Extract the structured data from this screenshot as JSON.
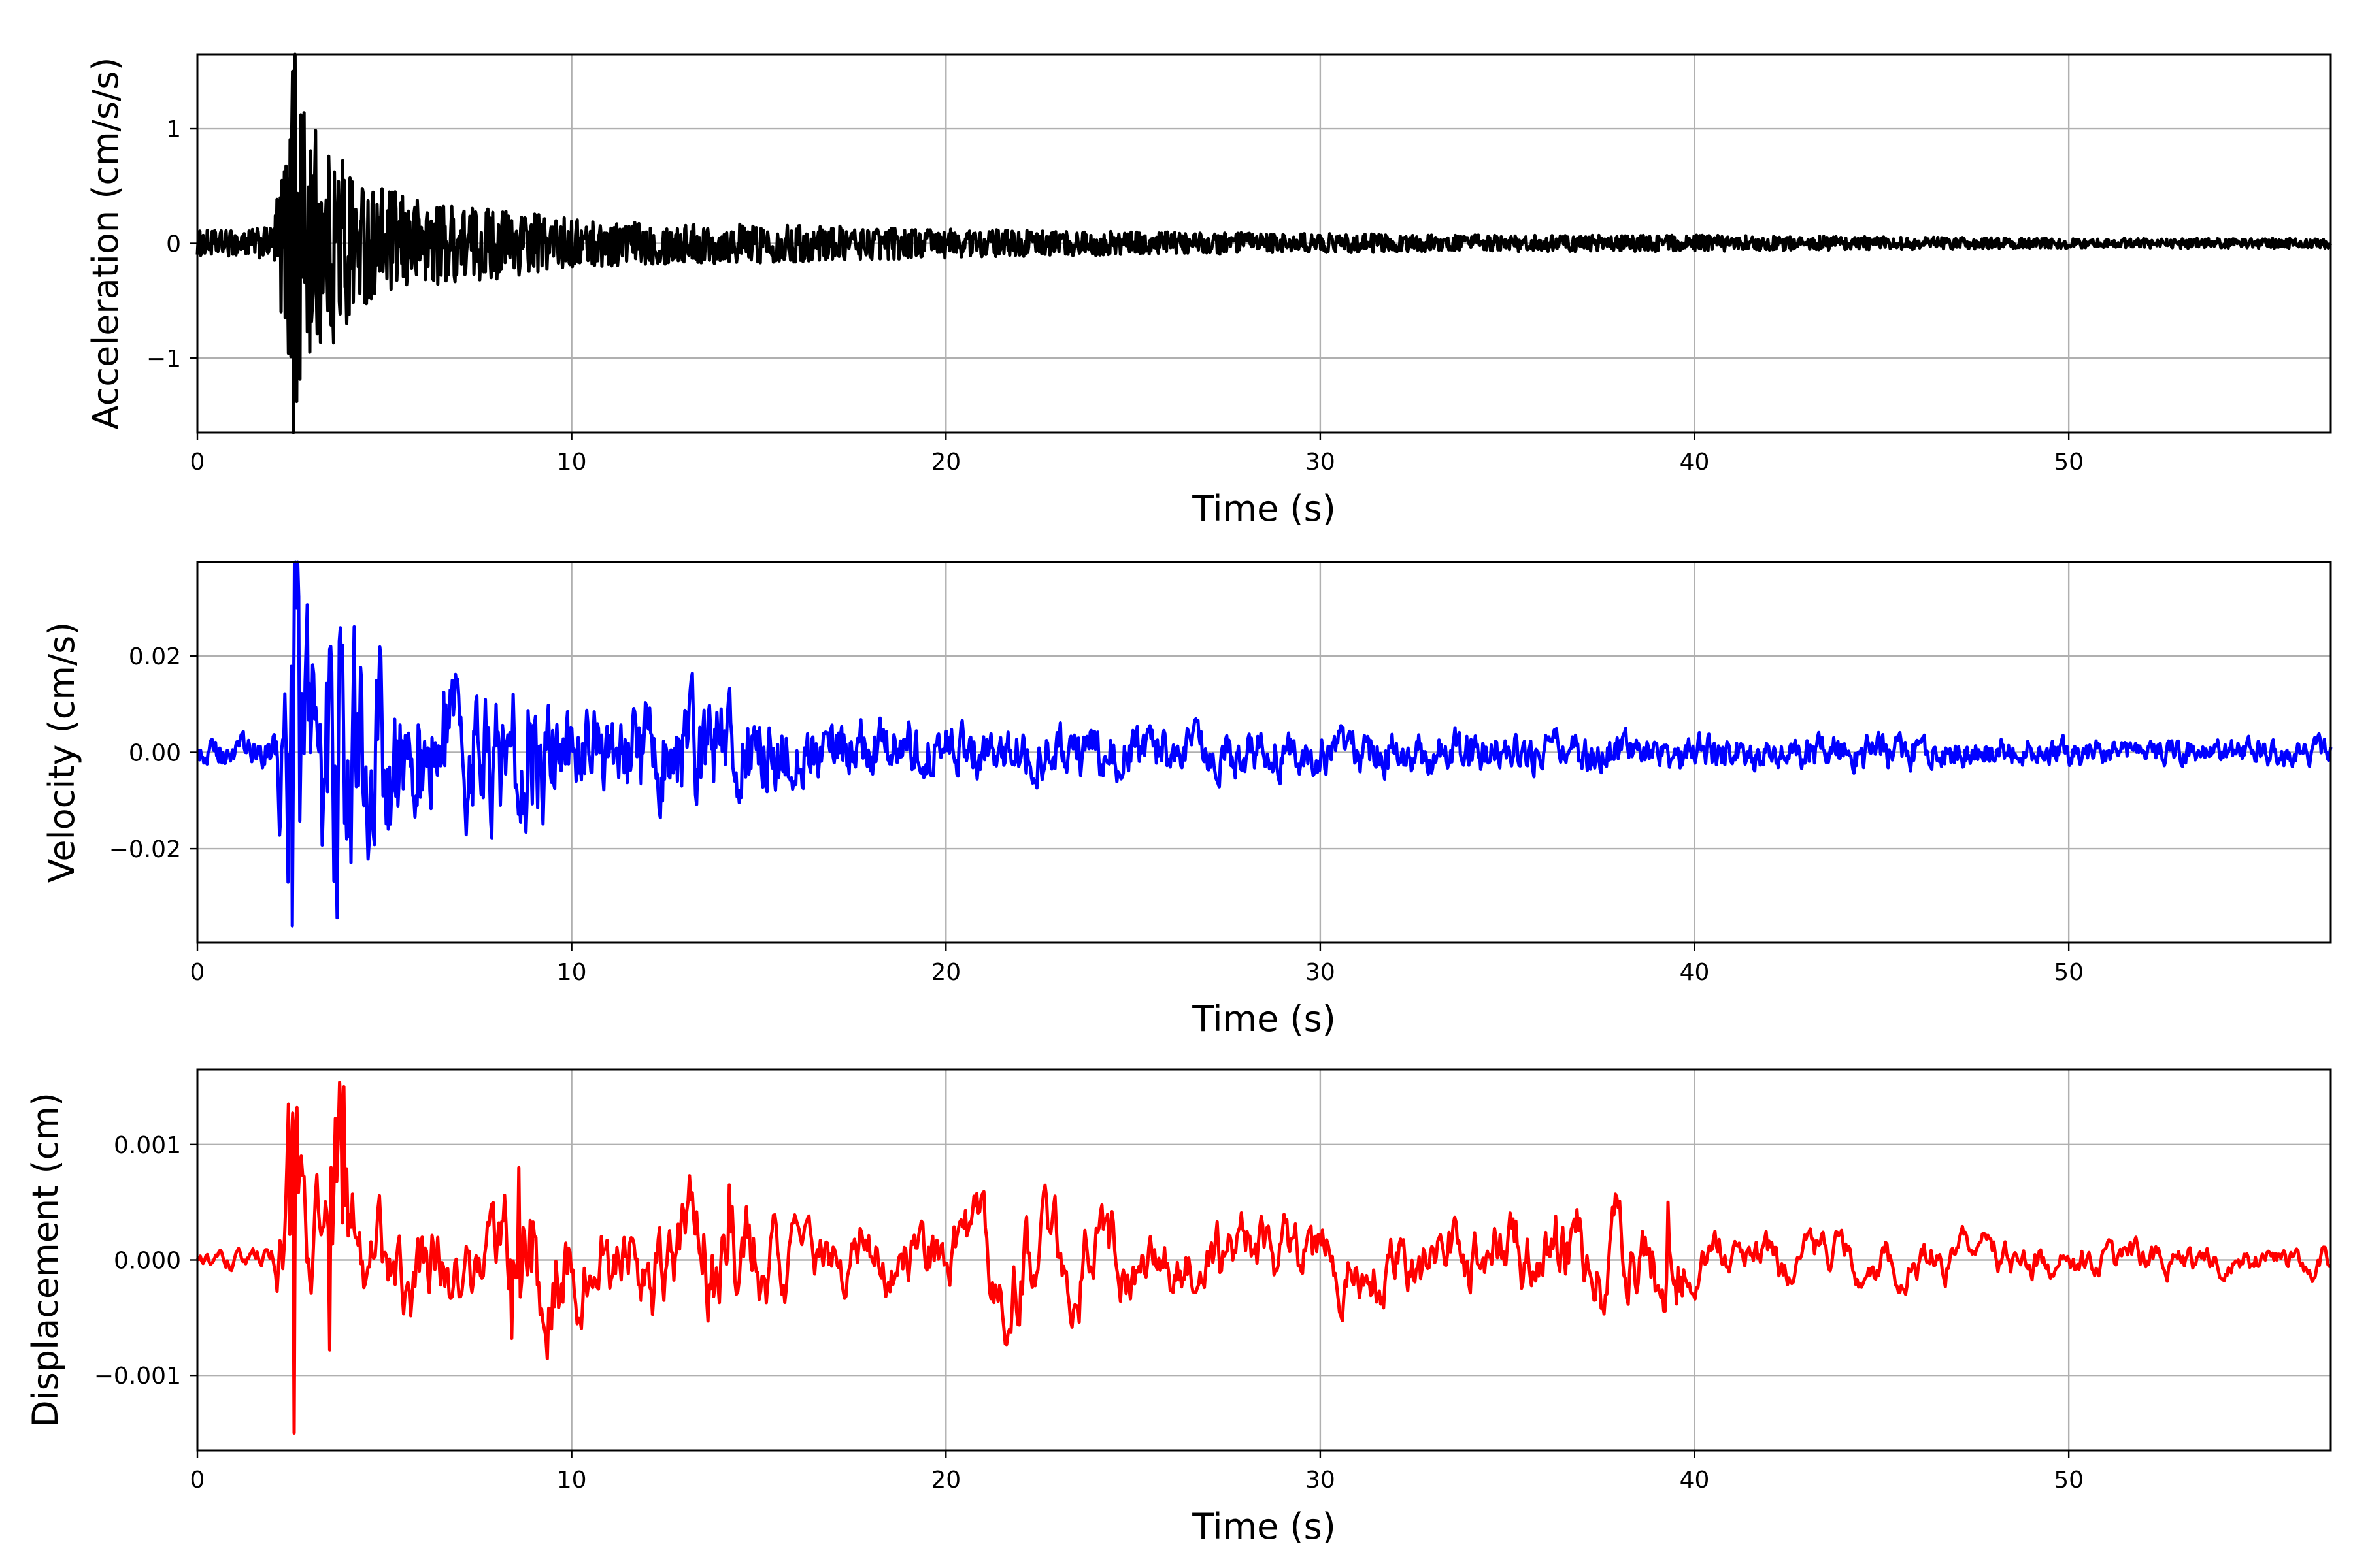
{
  "chart_data": [
    {
      "id": "acceleration",
      "type": "line",
      "xlabel": "Time (s)",
      "ylabel": "Acceleration (cm/s/s)",
      "xlim": [
        0,
        57
      ],
      "ylim": [
        -1.65,
        1.65
      ],
      "xticks": [
        0,
        10,
        20,
        30,
        40,
        50
      ],
      "yticks": [
        -1,
        0,
        1
      ],
      "xtick_labels": [
        "0",
        "10",
        "20",
        "30",
        "40",
        "50"
      ],
      "ytick_labels": [
        "−1",
        "0",
        "1"
      ],
      "grid": true,
      "color": "#000000",
      "series": [
        {
          "x": [
            0,
            1,
            2,
            2.2,
            2.4,
            2.55,
            2.65,
            2.75,
            2.9,
            3.1,
            3.4,
            3.8,
            4.2,
            4.8,
            5.5,
            6.5,
            8,
            10,
            12,
            15,
            18,
            22,
            26,
            30,
            35,
            40,
            45,
            50,
            57
          ],
          "envelope": [
            0.08,
            0.08,
            0.1,
            0.4,
            0.6,
            1.5,
            1.38,
            1.1,
            0.7,
            0.8,
            0.5,
            0.7,
            0.4,
            0.35,
            0.3,
            0.25,
            0.22,
            0.15,
            0.13,
            0.12,
            0.1,
            0.08,
            0.07,
            0.06,
            0.05,
            0.05,
            0.04,
            0.03,
            0.03
          ],
          "peaks": [
            [
              2.55,
              1.5
            ],
            [
              2.65,
              -1.38
            ],
            [
              2.4,
              0.55
            ],
            [
              3.0,
              -0.95
            ],
            [
              4.0,
              -0.7
            ]
          ]
        }
      ]
    },
    {
      "id": "velocity",
      "type": "line",
      "xlabel": "Time (s)",
      "ylabel": "Velocity (cm/s)",
      "xlim": [
        0,
        57
      ],
      "ylim": [
        -0.0395,
        0.0395
      ],
      "xticks": [
        0,
        10,
        20,
        30,
        40,
        50
      ],
      "yticks": [
        -0.02,
        0,
        0.02
      ],
      "xtick_labels": [
        "0",
        "10",
        "20",
        "30",
        "40",
        "50"
      ],
      "ytick_labels": [
        "−0.02",
        "0.00",
        "0.02"
      ],
      "grid": true,
      "color": "#0000ff",
      "series": [
        {
          "x": [
            0,
            1,
            2,
            2.2,
            2.4,
            2.55,
            2.65,
            2.8,
            3.1,
            3.5,
            3.8,
            4.3,
            5,
            6,
            7,
            8,
            8.6,
            10,
            12,
            14,
            16,
            20,
            25,
            30,
            35,
            40,
            45,
            50,
            57
          ],
          "envelope": [
            0.0015,
            0.0015,
            0.002,
            0.01,
            0.013,
            0.03,
            0.036,
            0.015,
            0.014,
            0.013,
            0.022,
            0.012,
            0.011,
            0.009,
            0.008,
            0.008,
            0.01,
            0.005,
            0.006,
            0.006,
            0.004,
            0.003,
            0.003,
            0.0025,
            0.0025,
            0.002,
            0.002,
            0.0015,
            0.0015
          ],
          "peaks": [
            [
              2.65,
              0.03
            ],
            [
              2.55,
              -0.036
            ],
            [
              3.8,
              0.023
            ],
            [
              4.0,
              -0.018
            ],
            [
              8.8,
              -0.01
            ],
            [
              14.0,
              0.009
            ]
          ]
        }
      ]
    },
    {
      "id": "displacement",
      "type": "line",
      "xlabel": "Time (s)",
      "ylabel": "Displacement (cm)",
      "xlim": [
        0,
        57
      ],
      "ylim": [
        -0.00165,
        0.00165
      ],
      "xticks": [
        0,
        10,
        20,
        30,
        40,
        50
      ],
      "yticks": [
        -0.001,
        0,
        0.001
      ],
      "xtick_labels": [
        "0",
        "10",
        "20",
        "30",
        "40",
        "50"
      ],
      "ytick_labels": [
        "−0.001",
        "0.000",
        "0.001"
      ],
      "grid": true,
      "color": "#ff0000",
      "series": [
        {
          "x": [
            0,
            1,
            2,
            2.3,
            2.5,
            2.6,
            2.8,
            3.2,
            3.5,
            3.8,
            4.2,
            5,
            6,
            7,
            8,
            8.6,
            10,
            12,
            14.2,
            16,
            20,
            22,
            25.5,
            30,
            35,
            37.2,
            39.4,
            40,
            45,
            50,
            57
          ],
          "envelope": [
            8e-05,
            8e-05,
            0.0001,
            0.0006,
            0.0013,
            0.0015,
            0.0006,
            0.0008,
            0.0007,
            0.0015,
            0.0005,
            0.0005,
            0.00045,
            0.0004,
            0.00045,
            0.0008,
            0.0004,
            0.00045,
            0.0006,
            0.0003,
            0.0003,
            0.0005,
            0.0003,
            0.0003,
            0.00035,
            0.00045,
            0.00045,
            0.0002,
            0.0002,
            0.00015,
            0.00012
          ],
          "peaks": [
            [
              2.45,
              0.00135
            ],
            [
              2.6,
              -0.0015
            ],
            [
              3.9,
              0.0015
            ],
            [
              3.55,
              -0.00078
            ],
            [
              8.6,
              0.0008
            ],
            [
              8.4,
              -0.00068
            ],
            [
              14.2,
              0.00065
            ],
            [
              21.7,
              -0.0006
            ],
            [
              39.3,
              0.0005
            ]
          ]
        }
      ]
    }
  ]
}
